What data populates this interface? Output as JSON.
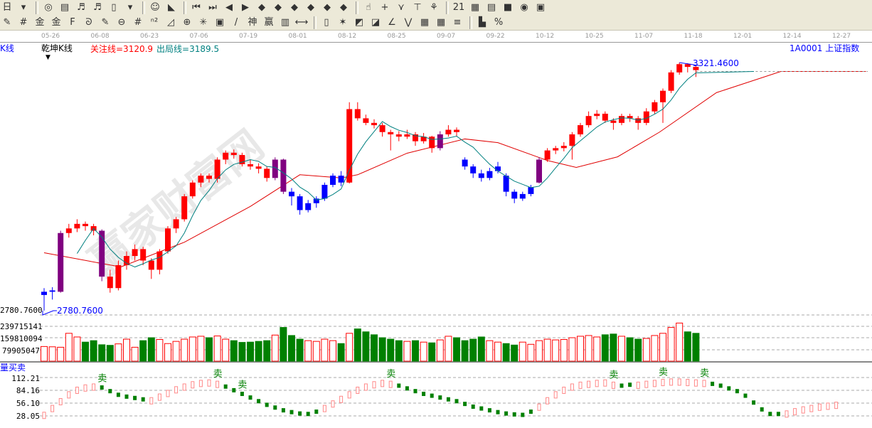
{
  "toolbar": {
    "row1_icons": [
      "period-icon",
      "dropdown-icon",
      "analysis-icon",
      "notes-icon",
      "indicator3-icon",
      "indicator9-icon",
      "candle-icon",
      "dropdown-icon",
      "face-icon",
      "flag-icon",
      "first-icon",
      "last-icon",
      "left-icon",
      "right-icon",
      "arrow-left-icon",
      "arrow-right-icon",
      "arrow-both-icon",
      "arrow-x-icon",
      "arrow-cross-icon",
      "arrow-all-icon",
      "hand-icon",
      "crosshair-icon",
      "line-icon",
      "bookmark-icon",
      "chain-icon",
      "calendar-icon",
      "calculator-icon",
      "document-icon",
      "save-icon",
      "network-icon",
      "export-icon"
    ],
    "row1_glyphs": [
      "日",
      "▾",
      "◎",
      "▤",
      "♬",
      "♬",
      "▯",
      "▾",
      "☺",
      "◣",
      "⏮",
      "⏭",
      "◀",
      "▶",
      "◆",
      "◆",
      "◆",
      "◆",
      "◆",
      "◆",
      "☝",
      "+",
      "⋎",
      "⊤",
      "⚘",
      "21",
      "▦",
      "▤",
      "■",
      "◉",
      "▣"
    ],
    "row2_icons": [
      "pen-icon",
      "parallel-icon",
      "gold-icon",
      "gold2-icon",
      "fib-icon",
      "spiral-icon",
      "pen2-icon",
      "circle-icon",
      "lines-icon",
      "n2-icon",
      "angle-icon",
      "target-icon",
      "web-icon",
      "box-icon",
      "slash-icon",
      "shen-icon",
      "ying-icon",
      "ruler-icon",
      "width-icon",
      "rect-icon",
      "fan-icon",
      "gann-icon",
      "gann2-icon",
      "ray-icon",
      "zigzag-icon",
      "grid-icon",
      "grid2-icon",
      "channel-icon",
      "bar-icon",
      "percent-icon"
    ],
    "row2_glyphs": [
      "✎",
      "#",
      "金",
      "金",
      "F",
      "ᘐ",
      "✎",
      "⊖",
      "#",
      "ⁿ²",
      "◿",
      "⊕",
      "✳",
      "▣",
      "/",
      "神",
      "赢",
      "▥",
      "⟷",
      "▯",
      "✶",
      "◩",
      "◪",
      "∠",
      "⋁",
      "▦",
      "▦",
      "≡",
      "▙",
      "%"
    ]
  },
  "date_axis": [
    "05-26",
    "06-08",
    "06-23",
    "07-06",
    "07-19",
    "08-01",
    "08-12",
    "08-25",
    "09-07",
    "09-22",
    "10-12",
    "10-25",
    "11-07",
    "11-18",
    "12-01",
    "12-14",
    "12-27"
  ],
  "header": {
    "period_label": "K线",
    "indicator_name": "乾坤K线",
    "focus_line": "关注线=3120.9",
    "exit_line": "出局线=3189.5",
    "symbol": "1A0001 上证指数"
  },
  "watermark": "赢家财富网 www.yingjia360.com QQ:10080030",
  "colors": {
    "up": "#ff0000",
    "down": "#0000ff",
    "special": "#800080",
    "vol_down": "#008000",
    "ma_short": "#008080",
    "ma_long": "#e00000",
    "label": "#0000ff"
  },
  "chart_data": {
    "type": "candlestick",
    "price_axis": {
      "labels": [
        "2780.7600"
      ],
      "min": 2780.76,
      "max": 3321.46
    },
    "annotations": {
      "low_label": "2780.7600",
      "high_label": "3321.4600"
    },
    "candles": [
      [
        2815,
        2830,
        2781,
        2822
      ],
      [
        2822,
        2832,
        2805,
        2825
      ],
      [
        2822,
        2955,
        2820,
        2950
      ],
      [
        2950,
        2970,
        2940,
        2960
      ],
      [
        2960,
        2980,
        2952,
        2970
      ],
      [
        2970,
        2975,
        2955,
        2965
      ],
      [
        2965,
        2970,
        2945,
        2955
      ],
      [
        2955,
        2958,
        2845,
        2855
      ],
      [
        2855,
        2870,
        2820,
        2830
      ],
      [
        2830,
        2890,
        2825,
        2880
      ],
      [
        2880,
        2910,
        2870,
        2900
      ],
      [
        2900,
        2925,
        2890,
        2915
      ],
      [
        2915,
        2920,
        2880,
        2890
      ],
      [
        2890,
        2895,
        2850,
        2870
      ],
      [
        2870,
        2915,
        2860,
        2910
      ],
      [
        2910,
        2965,
        2905,
        2960
      ],
      [
        2960,
        2985,
        2950,
        2980
      ],
      [
        2980,
        3035,
        2975,
        3030
      ],
      [
        3030,
        3065,
        3025,
        3060
      ],
      [
        3060,
        3080,
        3050,
        3075
      ],
      [
        3075,
        3080,
        3060,
        3068
      ],
      [
        3068,
        3115,
        3060,
        3110
      ],
      [
        3110,
        3130,
        3100,
        3125
      ],
      [
        3125,
        3132,
        3112,
        3120
      ],
      [
        3120,
        3125,
        3095,
        3100
      ],
      [
        3100,
        3110,
        3088,
        3095
      ],
      [
        3095,
        3102,
        3080,
        3090
      ],
      [
        3090,
        3095,
        3062,
        3070
      ],
      [
        3070,
        3115,
        3065,
        3110
      ],
      [
        3110,
        3112,
        3035,
        3040
      ],
      [
        3040,
        3048,
        3010,
        3030
      ],
      [
        3030,
        3035,
        2990,
        3000
      ],
      [
        3000,
        3022,
        2995,
        3015
      ],
      [
        3015,
        3030,
        3005,
        3025
      ],
      [
        3025,
        3060,
        3020,
        3055
      ],
      [
        3055,
        3080,
        3050,
        3075
      ],
      [
        3075,
        3085,
        3052,
        3060
      ],
      [
        3060,
        3235,
        3058,
        3220
      ],
      [
        3220,
        3235,
        3195,
        3200
      ],
      [
        3200,
        3208,
        3185,
        3190
      ],
      [
        3190,
        3198,
        3178,
        3185
      ],
      [
        3185,
        3190,
        3160,
        3170
      ],
      [
        3170,
        3175,
        3130,
        3165
      ],
      [
        3165,
        3172,
        3150,
        3160
      ],
      [
        3160,
        3175,
        3155,
        3165
      ],
      [
        3165,
        3170,
        3140,
        3150
      ],
      [
        3150,
        3168,
        3145,
        3160
      ],
      [
        3160,
        3162,
        3125,
        3135
      ],
      [
        3135,
        3172,
        3130,
        3165
      ],
      [
        3165,
        3185,
        3160,
        3175
      ],
      [
        3175,
        3180,
        3160,
        3170
      ],
      [
        3110,
        3115,
        3088,
        3095
      ],
      [
        3095,
        3100,
        3070,
        3080
      ],
      [
        3080,
        3088,
        3062,
        3070
      ],
      [
        3070,
        3092,
        3065,
        3085
      ],
      [
        3085,
        3105,
        3080,
        3095
      ],
      [
        3075,
        3080,
        3030,
        3040
      ],
      [
        3040,
        3045,
        3015,
        3025
      ],
      [
        3025,
        3040,
        3020,
        3035
      ],
      [
        3035,
        3055,
        3030,
        3050
      ],
      [
        3060,
        3115,
        3058,
        3110
      ],
      [
        3110,
        3135,
        3105,
        3130
      ],
      [
        3130,
        3140,
        3122,
        3135
      ],
      [
        3135,
        3148,
        3128,
        3140
      ],
      [
        3140,
        3170,
        3110,
        3165
      ],
      [
        3165,
        3190,
        3160,
        3185
      ],
      [
        3185,
        3215,
        3180,
        3205
      ],
      [
        3205,
        3218,
        3198,
        3210
      ],
      [
        3210,
        3215,
        3190,
        3195
      ],
      [
        3195,
        3200,
        3175,
        3190
      ],
      [
        3190,
        3210,
        3185,
        3205
      ],
      [
        3205,
        3210,
        3192,
        3200
      ],
      [
        3200,
        3205,
        3175,
        3190
      ],
      [
        3190,
        3222,
        3185,
        3215
      ],
      [
        3215,
        3240,
        3210,
        3235
      ],
      [
        3235,
        3265,
        3190,
        3260
      ],
      [
        3260,
        3305,
        3255,
        3300
      ],
      [
        3300,
        3321.46,
        3295,
        3318
      ],
      [
        3318,
        3320,
        3300,
        3312
      ],
      [
        3312,
        3316,
        3290,
        3305
      ]
    ],
    "candle_colors": "bbprrrrprrrrrrrrrrrrrrrrrrrrppbbbbbbbrrrrrrrrrrrprrbbbbbbbbbprrrrrrrrrrrrrrrrrrr",
    "ma_long_knots": [
      [
        0,
        2907
      ],
      [
        9.3,
        2876
      ],
      [
        17,
        2930
      ],
      [
        25,
        3008
      ],
      [
        31,
        3077
      ],
      [
        36,
        3070
      ],
      [
        38,
        3077
      ],
      [
        44,
        3124
      ],
      [
        51,
        3155
      ],
      [
        55,
        3147
      ],
      [
        61,
        3108
      ],
      [
        64.5,
        3093
      ],
      [
        69.5,
        3116
      ],
      [
        74.6,
        3170
      ],
      [
        81.5,
        3256
      ],
      [
        89.3,
        3302
      ],
      [
        99.6,
        3302
      ]
    ],
    "volume": {
      "axis_labels": [
        "239715141",
        "159810094",
        "79905047"
      ],
      "values": [
        100000000,
        98000000,
        95000000,
        190000000,
        165000000,
        130000000,
        140000000,
        112000000,
        108000000,
        118000000,
        150000000,
        95000000,
        140000000,
        160000000,
        148000000,
        120000000,
        135000000,
        150000000,
        165000000,
        170000000,
        160000000,
        172000000,
        150000000,
        140000000,
        128000000,
        130000000,
        135000000,
        140000000,
        178000000,
        230000000,
        175000000,
        150000000,
        140000000,
        135000000,
        150000000,
        140000000,
        120000000,
        190000000,
        220000000,
        200000000,
        180000000,
        160000000,
        150000000,
        140000000,
        135000000,
        140000000,
        130000000,
        125000000,
        145000000,
        170000000,
        160000000,
        140000000,
        150000000,
        165000000,
        140000000,
        130000000,
        120000000,
        110000000,
        130000000,
        115000000,
        140000000,
        150000000,
        145000000,
        148000000,
        160000000,
        170000000,
        175000000,
        165000000,
        180000000,
        185000000,
        170000000,
        160000000,
        150000000,
        155000000,
        175000000,
        190000000,
        230000000,
        260000000,
        200000000,
        190000000
      ]
    },
    "indicator": {
      "name": "量买卖",
      "axis_labels": [
        "112.21",
        "84.16",
        "56.10",
        "28.05"
      ],
      "values": [
        30,
        45,
        60,
        75,
        85,
        90,
        92,
        88,
        80,
        72,
        68,
        65,
        62,
        62,
        70,
        78,
        86,
        92,
        97,
        100,
        101,
        98,
        90,
        82,
        74,
        66,
        58,
        50,
        44,
        38,
        34,
        31,
        30,
        35,
        45,
        55,
        65,
        75,
        85,
        92,
        97,
        100,
        98,
        92,
        86,
        80,
        74,
        70,
        66,
        62,
        58,
        52,
        46,
        42,
        38,
        34,
        31,
        29,
        28,
        35,
        48,
        62,
        75,
        85,
        92,
        96,
        98,
        100,
        101,
        96,
        92,
        94,
        96,
        98,
        100,
        102,
        103,
        103,
        102,
        101,
        100,
        96,
        92,
        86,
        80,
        70,
        55,
        40,
        30,
        30,
        33,
        38,
        42,
        45,
        48,
        50,
        52
      ],
      "colors": "rrrrrrrgggggg rrrrrrrrggggggggggggrrrrrrrrrgggggggggggggggggrrrrrrrrrrggrrrrrrrrrgggggggggrrrrrrrr",
      "sell_label": "卖",
      "sell_markers": [
        7,
        21,
        24,
        42,
        69,
        75,
        80
      ]
    }
  }
}
